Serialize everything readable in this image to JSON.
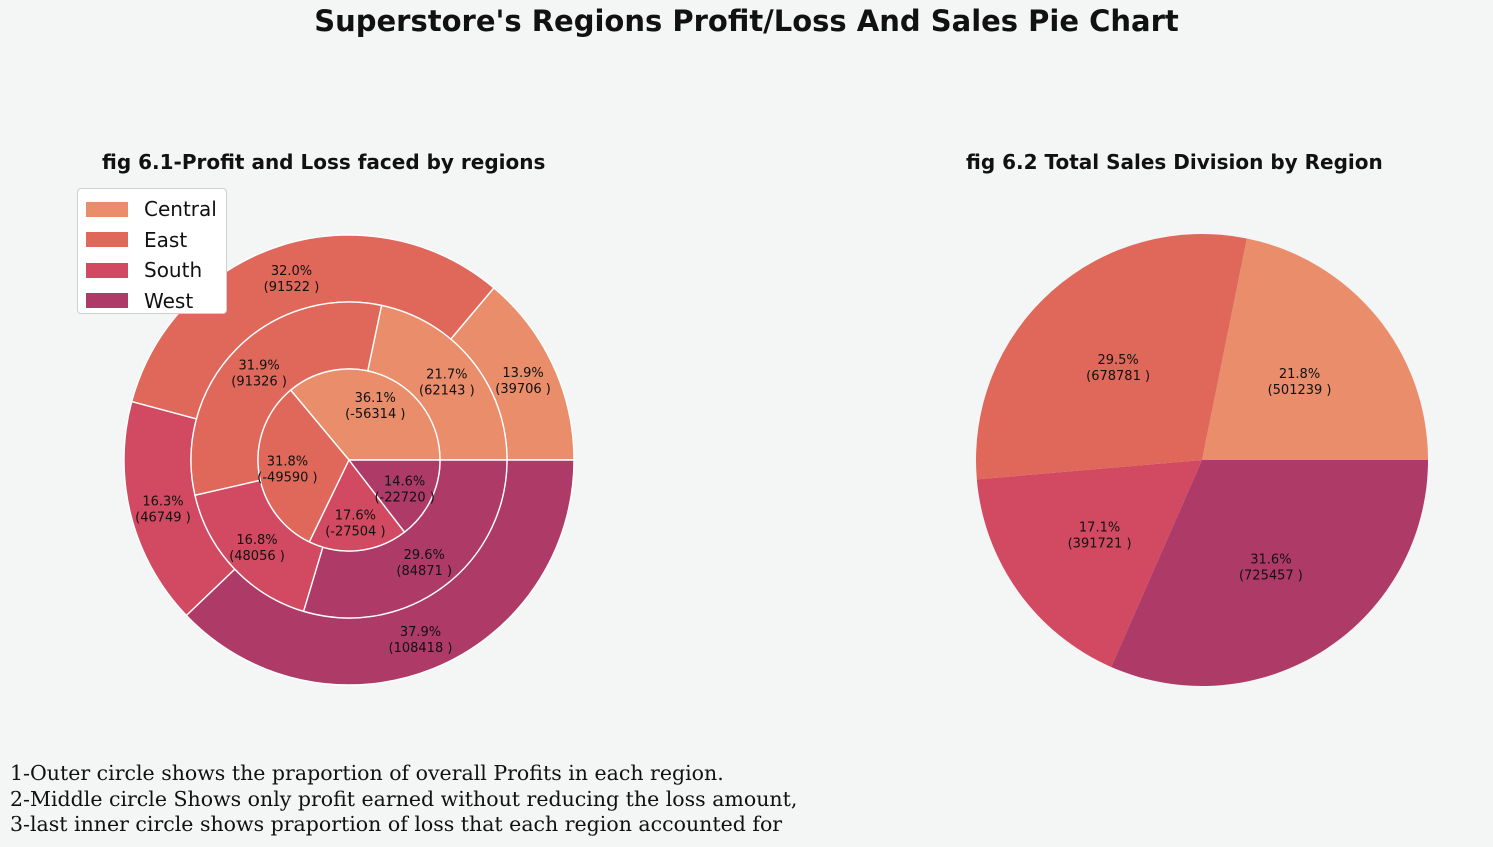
{
  "title": "Superstore's Regions Profit/Loss And Sales Pie Chart",
  "colors": {
    "Central": "#e98d6b",
    "East": "#e0685b",
    "South": "#d14a61",
    "West": "#ae3a68",
    "background": "#f4f5f5"
  },
  "legend": {
    "items": [
      {
        "label": "Central",
        "color": "#e98d6b"
      },
      {
        "label": "East",
        "color": "#e0685b"
      },
      {
        "label": "South",
        "color": "#d14a61"
      },
      {
        "label": "West",
        "color": "#ae3a68"
      }
    ],
    "placement": "upper-left"
  },
  "notes": [
    "1-Outer circle shows the praportion of overall Profits in each region.",
    "2-Middle circle Shows only profit earned without reducing the loss amount,",
    "3-last inner circle shows praportion of loss that each region accounted for"
  ],
  "chart_data": [
    {
      "type": "pie",
      "variant": "nested-donut",
      "title": "fig 6.1-Profit and Loss faced by regions",
      "categories": [
        "Central",
        "East",
        "South",
        "West"
      ],
      "rings": [
        {
          "ring": "outer",
          "values": [
            39706,
            91522,
            46749,
            108418
          ],
          "labels": [
            "13.9%\n(39706 )",
            "32.0%\n(91522 )",
            "16.3%\n(46749 )",
            "37.9%\n(108418 )"
          ]
        },
        {
          "ring": "middle",
          "values": [
            62143,
            91326,
            48056,
            84871
          ],
          "labels": [
            "21.7%\n(62143 )",
            "31.9%\n(91326 )",
            "16.8%\n(48056 )",
            "29.6%\n(84871 )"
          ]
        },
        {
          "ring": "inner",
          "values": [
            -56314,
            -49590,
            -27504,
            -22720
          ],
          "labels": [
            "36.1%\n(-56314 )",
            "31.8%\n(-49590 )",
            "17.6%\n(-27504 )",
            "14.6%\n(-22720 )"
          ]
        }
      ]
    },
    {
      "type": "pie",
      "title": "fig 6.2 Total Sales Division by Region",
      "categories": [
        "Central",
        "East",
        "South",
        "West"
      ],
      "values": [
        501239,
        678781,
        391721,
        725457
      ],
      "labels": [
        "21.8%\n(501239 )",
        "29.5%\n(678781 )",
        "17.1%\n(391721 )",
        "31.6%\n(725457 )"
      ]
    }
  ]
}
